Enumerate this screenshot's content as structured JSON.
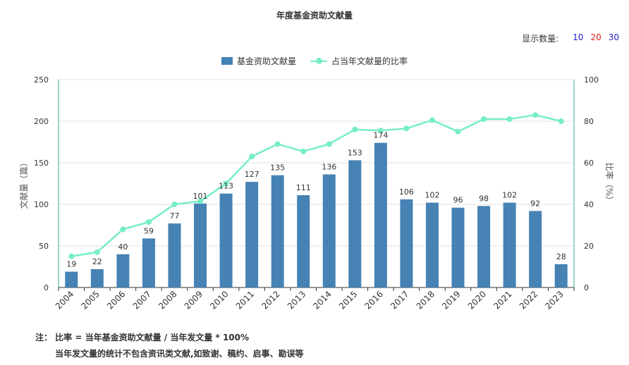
{
  "chart_data": {
    "type": "bar",
    "title": "年度基金资助文献量",
    "categories": [
      "2004",
      "2005",
      "2006",
      "2007",
      "2008",
      "2009",
      "2010",
      "2011",
      "2012",
      "2013",
      "2014",
      "2015",
      "2016",
      "2017",
      "2018",
      "2019",
      "2020",
      "2021",
      "2022",
      "2023"
    ],
    "series": [
      {
        "name": "基金资助文献量",
        "type": "bar",
        "axis": "left",
        "color": "#4682b4",
        "values": [
          19,
          22,
          40,
          59,
          77,
          101,
          113,
          127,
          135,
          111,
          136,
          153,
          174,
          106,
          102,
          96,
          98,
          102,
          92,
          28
        ]
      },
      {
        "name": "占当年文献量的比率",
        "type": "line",
        "axis": "right",
        "color": "#76eec6",
        "values": [
          15,
          17,
          28,
          31.5,
          40,
          41.5,
          50,
          63,
          69,
          65.5,
          69,
          76,
          75.5,
          76.5,
          80.5,
          75,
          81,
          81,
          83,
          80
        ]
      }
    ],
    "ylabel": "文献量（篇）",
    "ylabel_right": "比率（%）",
    "ylim": [
      0,
      250
    ],
    "ylim_right": [
      0,
      100
    ],
    "yticks": [
      "0",
      "50",
      "100",
      "150",
      "200",
      "250"
    ],
    "yticks_right": [
      "0",
      "20",
      "40",
      "60",
      "80",
      "100"
    ],
    "grid": true,
    "legend": "top-center"
  },
  "display_count": {
    "label": "显示数量:",
    "options": [
      {
        "label": "10",
        "color": "#1f1fcc"
      },
      {
        "label": "20",
        "color": "#e02020"
      },
      {
        "label": "30",
        "color": "#1f1fcc"
      }
    ]
  },
  "notes": {
    "line1": "注：  比率 = 当年基金资助文献量 / 当年发文量 * 100%",
    "line2": "当年发文量的统计不包含资讯类文献,如致谢、稿约、启事、勘误等"
  }
}
